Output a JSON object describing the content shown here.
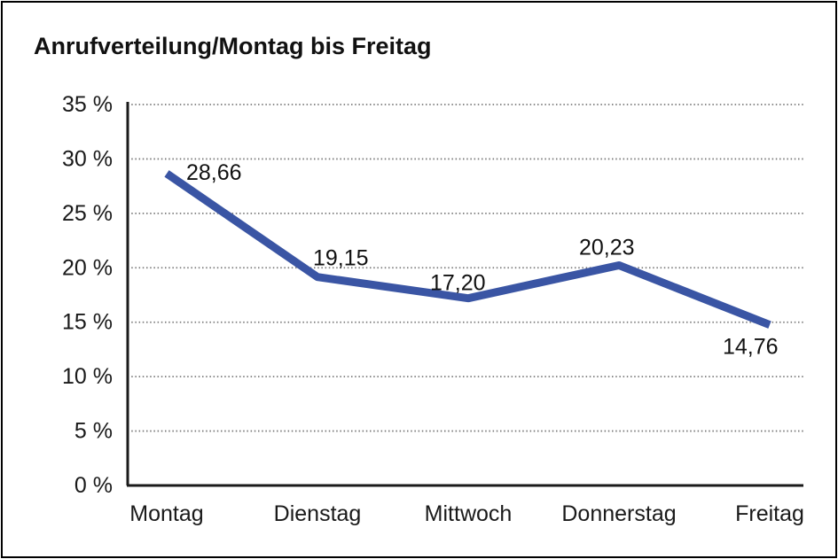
{
  "chart_data": {
    "type": "line",
    "title": "Anrufverteilung/Montag bis Freitag",
    "categories": [
      "Montag",
      "Dienstag",
      "Mittwoch",
      "Donnerstag",
      "Freitag"
    ],
    "series": [
      {
        "name": "Anrufverteilung",
        "values": [
          28.66,
          19.15,
          17.2,
          20.23,
          14.76
        ],
        "point_labels": [
          "28,66",
          "19,15",
          "17,20",
          "20,23",
          "14,76"
        ]
      }
    ],
    "xlabel": "",
    "ylabel": "",
    "ylim": [
      0,
      35
    ],
    "y_ticks": [
      {
        "value": 35,
        "label": "35 %"
      },
      {
        "value": 30,
        "label": "30 %"
      },
      {
        "value": 25,
        "label": "25 %"
      },
      {
        "value": 20,
        "label": "20 %"
      },
      {
        "value": 15,
        "label": "15 %"
      },
      {
        "value": 10,
        "label": "10 %"
      },
      {
        "value": 5,
        "label": "5 %"
      },
      {
        "value": 0,
        "label": "0 %"
      }
    ],
    "grid": "horizontal-dotted",
    "legend": "none",
    "colors": {
      "line": "#3A55A4",
      "axis": "#1a1a1a",
      "gridline": "#7a7a7a",
      "text": "#111111",
      "background": "#ffffff",
      "border": "#000000"
    }
  }
}
